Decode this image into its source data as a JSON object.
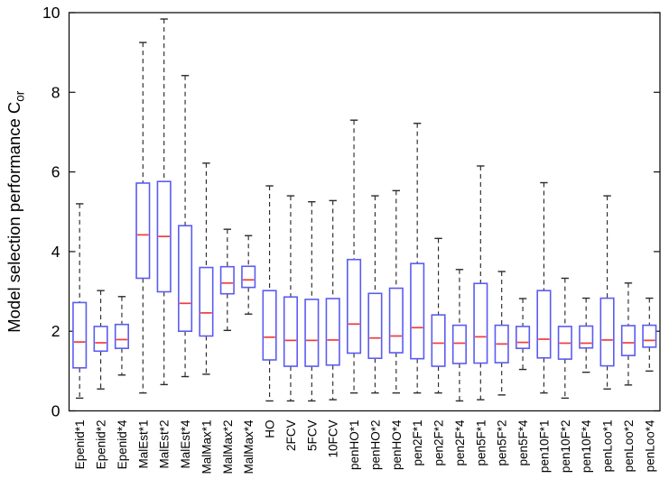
{
  "chart_data": {
    "type": "boxplot",
    "title": "",
    "xlabel": "",
    "ylabel": {
      "main": "Model selection performance C",
      "sub": "or"
    },
    "ylim": [
      0,
      10
    ],
    "yticks": [
      0,
      2,
      4,
      6,
      8,
      10
    ],
    "grid": false,
    "legend_position": "none",
    "colors": {
      "box_stroke": "#5b5bf2",
      "box_fill": "#ffffff",
      "median": "#f03c3c",
      "whisker": "#2b2b2b",
      "cap": "#2b2b2b",
      "frame": "#111111",
      "text": "#000000",
      "background": "#ffffff"
    },
    "boxes": [
      {
        "label": "Epenid*1",
        "whisker_low": 0.32,
        "q1": 1.08,
        "median": 1.73,
        "q3": 2.72,
        "whisker_high": 5.2
      },
      {
        "label": "Epenid*2",
        "whisker_low": 0.55,
        "q1": 1.5,
        "median": 1.71,
        "q3": 2.12,
        "whisker_high": 3.02
      },
      {
        "label": "Epenid*4",
        "whisker_low": 0.9,
        "q1": 1.57,
        "median": 1.79,
        "q3": 2.17,
        "whisker_high": 2.87
      },
      {
        "label": "MalEst*1",
        "whisker_low": 0.45,
        "q1": 3.33,
        "median": 4.42,
        "q3": 5.72,
        "whisker_high": 9.25
      },
      {
        "label": "MalEst*2",
        "whisker_low": 0.66,
        "q1": 2.99,
        "median": 4.38,
        "q3": 5.76,
        "whisker_high": 9.84
      },
      {
        "label": "MalEst*4",
        "whisker_low": 0.86,
        "q1": 2.0,
        "median": 2.7,
        "q3": 4.65,
        "whisker_high": 8.42
      },
      {
        "label": "MalMax*1",
        "whisker_low": 0.92,
        "q1": 1.88,
        "median": 2.46,
        "q3": 3.6,
        "whisker_high": 6.22
      },
      {
        "label": "MalMax*2",
        "whisker_low": 2.02,
        "q1": 2.94,
        "median": 3.21,
        "q3": 3.62,
        "whisker_high": 4.56
      },
      {
        "label": "MalMax*4",
        "whisker_low": 2.43,
        "q1": 3.1,
        "median": 3.29,
        "q3": 3.63,
        "whisker_high": 4.4
      },
      {
        "label": "HO",
        "whisker_low": 0.25,
        "q1": 1.28,
        "median": 1.85,
        "q3": 3.02,
        "whisker_high": 5.65
      },
      {
        "label": "2FCV",
        "whisker_low": 0.25,
        "q1": 1.12,
        "median": 1.77,
        "q3": 2.86,
        "whisker_high": 5.4
      },
      {
        "label": "5FCV",
        "whisker_low": 0.25,
        "q1": 1.12,
        "median": 1.77,
        "q3": 2.8,
        "whisker_high": 5.25
      },
      {
        "label": "10FCV",
        "whisker_low": 0.28,
        "q1": 1.15,
        "median": 1.78,
        "q3": 2.82,
        "whisker_high": 5.28
      },
      {
        "label": "penHO*1",
        "whisker_low": 0.45,
        "q1": 1.45,
        "median": 2.18,
        "q3": 3.8,
        "whisker_high": 7.3
      },
      {
        "label": "penHO*2",
        "whisker_low": 0.45,
        "q1": 1.32,
        "median": 1.83,
        "q3": 2.95,
        "whisker_high": 5.4
      },
      {
        "label": "penHO*4",
        "whisker_low": 0.45,
        "q1": 1.46,
        "median": 1.88,
        "q3": 3.08,
        "whisker_high": 5.53
      },
      {
        "label": "pen2F*1",
        "whisker_low": 0.45,
        "q1": 1.31,
        "median": 2.09,
        "q3": 3.7,
        "whisker_high": 7.22
      },
      {
        "label": "pen2F*2",
        "whisker_low": 0.45,
        "q1": 1.12,
        "median": 1.7,
        "q3": 2.41,
        "whisker_high": 4.33
      },
      {
        "label": "pen2F*4",
        "whisker_low": 0.25,
        "q1": 1.19,
        "median": 1.7,
        "q3": 2.15,
        "whisker_high": 3.55
      },
      {
        "label": "pen5F*1",
        "whisker_low": 0.28,
        "q1": 1.2,
        "median": 1.86,
        "q3": 3.2,
        "whisker_high": 6.15
      },
      {
        "label": "pen5F*2",
        "whisker_low": 0.4,
        "q1": 1.21,
        "median": 1.68,
        "q3": 2.15,
        "whisker_high": 3.5
      },
      {
        "label": "pen5F*4",
        "whisker_low": 1.04,
        "q1": 1.57,
        "median": 1.72,
        "q3": 2.12,
        "whisker_high": 2.82
      },
      {
        "label": "pen10F*1",
        "whisker_low": 0.45,
        "q1": 1.33,
        "median": 1.8,
        "q3": 3.02,
        "whisker_high": 5.73
      },
      {
        "label": "pen10F*2",
        "whisker_low": 0.32,
        "q1": 1.3,
        "median": 1.7,
        "q3": 2.12,
        "whisker_high": 3.33
      },
      {
        "label": "pen10F*4",
        "whisker_low": 0.97,
        "q1": 1.58,
        "median": 1.7,
        "q3": 2.13,
        "whisker_high": 2.83
      },
      {
        "label": "penLoo*1",
        "whisker_low": 0.55,
        "q1": 1.13,
        "median": 1.78,
        "q3": 2.83,
        "whisker_high": 5.4
      },
      {
        "label": "penLoo*2",
        "whisker_low": 0.65,
        "q1": 1.39,
        "median": 1.71,
        "q3": 2.14,
        "whisker_high": 3.21
      },
      {
        "label": "penLoo*4",
        "whisker_low": 1.0,
        "q1": 1.6,
        "median": 1.77,
        "q3": 2.15,
        "whisker_high": 2.83
      }
    ]
  }
}
